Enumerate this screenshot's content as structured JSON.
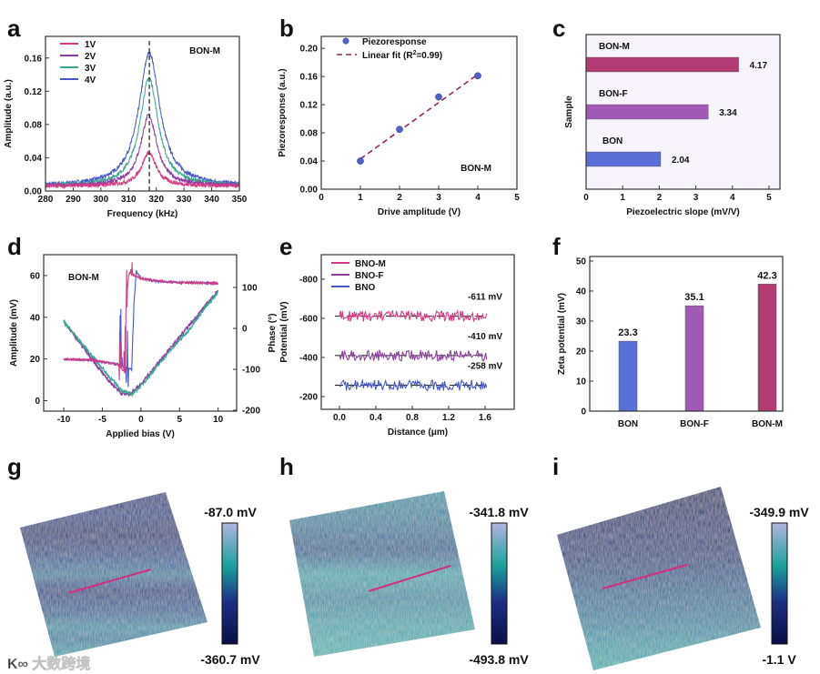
{
  "watermark": "大数跨境",
  "colors": {
    "pink": "#d63a82",
    "purple": "#8a3d9e",
    "teal": "#3aa590",
    "blue": "#4756c9",
    "bon_m": "#b33b73",
    "bon_f": "#a05ab5",
    "bon": "#5b6fd8",
    "fit": "#8e2a5e"
  },
  "chart_data": [
    {
      "panel": "a",
      "type": "line",
      "xlabel": "Frequency (kHz)",
      "ylabel": "Amplitude (a.u.)",
      "xlim": [
        280,
        350
      ],
      "ylim": [
        0,
        0.186
      ],
      "xticks": [
        280,
        290,
        300,
        310,
        320,
        330,
        340,
        350
      ],
      "yticks": [
        {
          "v": 0,
          "t": "0.00"
        },
        {
          "v": 0.04,
          "t": "0.04"
        },
        {
          "v": 0.08,
          "t": "0.08"
        },
        {
          "v": 0.12,
          "t": "0.12"
        },
        {
          "v": 0.16,
          "t": "0.16"
        }
      ],
      "annotation": "BON-M",
      "resonance_marker": 317.5,
      "legend": "top-left",
      "series": [
        {
          "name": "1V",
          "color": "pink",
          "peak": 0.04,
          "center": 317.3,
          "hwhm": 3.2,
          "baseline": 0.006
        },
        {
          "name": "2V",
          "color": "purple",
          "peak": 0.085,
          "center": 317.3,
          "hwhm": 3.6,
          "baseline": 0.006
        },
        {
          "name": "3V",
          "color": "teal",
          "peak": 0.13,
          "center": 317.4,
          "hwhm": 4.0,
          "baseline": 0.006
        },
        {
          "name": "4V",
          "color": "blue",
          "peak": 0.16,
          "center": 317.5,
          "hwhm": 4.6,
          "baseline": 0.006
        }
      ]
    },
    {
      "panel": "b",
      "type": "scatter",
      "xlabel": "Drive amplitude (V)",
      "ylabel": "Piezoresponse (a.u.)",
      "xlim": [
        0,
        5
      ],
      "ylim": [
        0,
        0.217
      ],
      "xticks": [
        0,
        1,
        2,
        3,
        4,
        5
      ],
      "yticks": [
        {
          "v": 0,
          "t": "0.00"
        },
        {
          "v": 0.04,
          "t": "0.04"
        },
        {
          "v": 0.08,
          "t": "0.08"
        },
        {
          "v": 0.12,
          "t": "0.12"
        },
        {
          "v": 0.16,
          "t": "0.16"
        },
        {
          "v": 0.2,
          "t": "0.20"
        }
      ],
      "annotation": "BON-M",
      "legend_points": "Piezoresponse",
      "legend_fit_prefix": "Linear fit (R",
      "legend_fit_sup": "2",
      "legend_fit_suffix": "=0.99)",
      "points": [
        {
          "x": 1,
          "y": 0.04
        },
        {
          "x": 2,
          "y": 0.085
        },
        {
          "x": 3,
          "y": 0.131
        },
        {
          "x": 4,
          "y": 0.161
        }
      ],
      "fit": [
        {
          "x": 1,
          "y": 0.043
        },
        {
          "x": 4,
          "y": 0.163
        }
      ]
    },
    {
      "panel": "c",
      "type": "bar",
      "orientation": "horizontal",
      "xlabel": "Piezoelectric slope (mV/V)",
      "ylabel": "Sample",
      "xlim": [
        0,
        5.3
      ],
      "xticks": [
        0,
        1,
        2,
        3,
        4,
        5
      ],
      "categories": [
        "BON-M",
        "BON-F",
        "BON"
      ],
      "values": [
        4.17,
        3.34,
        2.04
      ],
      "value_labels": [
        "4.17",
        "3.34",
        "2.04"
      ],
      "bar_colors": [
        "bon_m",
        "bon_f",
        "bon"
      ]
    },
    {
      "panel": "d",
      "type": "line",
      "xlabel": "Applied bias (V)",
      "ylabel": "Amplitude (mV)",
      "y2label": "Phase (°)",
      "xlim": [
        -12.6,
        12.4
      ],
      "ylim": [
        -5,
        70
      ],
      "y2lim": [
        -202,
        180
      ],
      "xticks": [
        -10,
        -5,
        0,
        5,
        10
      ],
      "yticks": [
        0,
        20,
        40,
        60
      ],
      "y2ticks": [
        -200,
        -100,
        0,
        100
      ],
      "annotation": "BON-M",
      "amplitude_series": [
        {
          "color": "purple",
          "points": [
            [
              -10,
              38
            ],
            [
              -8,
              28
            ],
            [
              -6,
              18
            ],
            [
              -4,
              9
            ],
            [
              -2.5,
              3.5
            ],
            [
              -1.5,
              3
            ],
            [
              0,
              8
            ],
            [
              2,
              17
            ],
            [
              4,
              26
            ],
            [
              6,
              35
            ],
            [
              8,
              44
            ],
            [
              10,
              53
            ]
          ]
        },
        {
          "color": "teal",
          "points": [
            [
              -10,
              38
            ],
            [
              -8,
              29
            ],
            [
              -6,
              20
            ],
            [
              -4,
              11
            ],
            [
              -2.5,
              5
            ],
            [
              -1.2,
              3
            ],
            [
              0,
              7
            ],
            [
              2,
              16
            ],
            [
              4,
              25
            ],
            [
              6,
              33
            ],
            [
              8,
              43
            ],
            [
              10,
              52
            ]
          ]
        }
      ],
      "phase_series": [
        {
          "color": "blue",
          "points": [
            [
              -10,
              -75
            ],
            [
              -6,
              -78
            ],
            [
              -3,
              -88
            ],
            [
              -1.2,
              -100
            ],
            [
              -0.9,
              60
            ],
            [
              -0.6,
              140
            ],
            [
              0,
              122
            ],
            [
              2,
              115
            ],
            [
              5,
              112
            ],
            [
              10,
              110
            ]
          ]
        },
        {
          "color": "pink",
          "points": [
            [
              -10,
              -75
            ],
            [
              -6,
              -78
            ],
            [
              -3,
              -88
            ],
            [
              -2,
              -110
            ],
            [
              -1.8,
              90
            ],
            [
              -1.5,
              135
            ],
            [
              0,
              122
            ],
            [
              2,
              116
            ],
            [
              5,
              112
            ],
            [
              10,
              110
            ]
          ]
        }
      ]
    },
    {
      "panel": "e",
      "type": "line",
      "xlabel": "Distance (μm)",
      "ylabel": "Potential (mV)",
      "xlim": [
        -0.2,
        1.92
      ],
      "ylim": [
        -135,
        -925
      ],
      "inverted_y": true,
      "xticks": [
        {
          "v": 0,
          "t": "0.0"
        },
        {
          "v": 0.4,
          "t": "0.4"
        },
        {
          "v": 0.8,
          "t": "0.8"
        },
        {
          "v": 1.2,
          "t": "1.2"
        },
        {
          "v": 1.6,
          "t": "1.6"
        }
      ],
      "yticks": [
        -200,
        -400,
        -600,
        -800
      ],
      "legend": "top-left",
      "series": [
        {
          "name": "BNO-M",
          "color": "pink",
          "mean": -611,
          "label": "-611 mV"
        },
        {
          "name": "BNO-F",
          "color": "purple",
          "mean": -410,
          "label": "-410 mV"
        },
        {
          "name": "BNO",
          "color": "blue",
          "mean": -258,
          "label": "-258 mV"
        }
      ],
      "x_range": [
        0,
        1.62
      ]
    },
    {
      "panel": "f",
      "type": "bar",
      "xlabel": "",
      "ylabel": "Zeta potential (mV)",
      "ylim": [
        0,
        51.5
      ],
      "yticks": [
        0,
        10,
        20,
        30,
        40,
        50
      ],
      "categories": [
        "BON",
        "BON-F",
        "BON-M"
      ],
      "values": [
        23.3,
        35.1,
        42.3
      ],
      "value_labels": [
        "23.3",
        "35.1",
        "42.3"
      ],
      "bar_colors": [
        "bon",
        "bon_f",
        "bon_m"
      ]
    }
  ],
  "maps": [
    {
      "panel": "g",
      "colorbar_max": "-87.0 mV",
      "colorbar_min": "-360.7 mV"
    },
    {
      "panel": "h",
      "colorbar_max": "-341.8 mV",
      "colorbar_min": "-493.8 mV"
    },
    {
      "panel": "i",
      "colorbar_max": "-349.9 mV",
      "colorbar_min": "-1.1 V"
    }
  ],
  "panel_letters": [
    "a",
    "b",
    "c",
    "d",
    "e",
    "f",
    "g",
    "h",
    "i"
  ]
}
